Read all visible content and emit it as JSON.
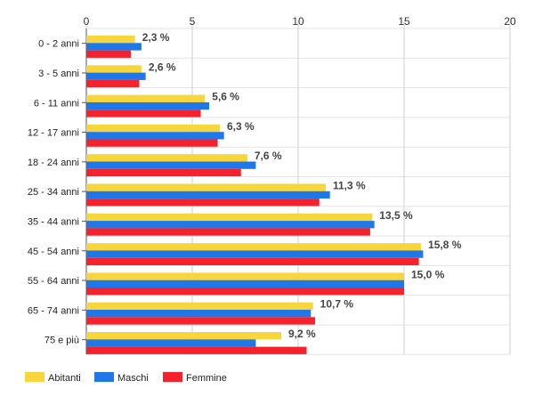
{
  "chart_data": {
    "type": "bar",
    "orientation": "horizontal",
    "categories": [
      "0 - 2 anni",
      "3 - 5 anni",
      "6 - 11 anni",
      "12 - 17 anni",
      "18 - 24 anni",
      "25 - 34 anni",
      "35 - 44 anni",
      "45 - 54 anni",
      "55 - 64 anni",
      "65 - 74 anni",
      "75 e più"
    ],
    "series": [
      {
        "name": "Abitanti",
        "color": "#f7d63c",
        "values": [
          2.3,
          2.6,
          5.6,
          6.3,
          7.6,
          11.3,
          13.5,
          15.8,
          15.0,
          10.7,
          9.2
        ]
      },
      {
        "name": "Maschi",
        "color": "#1f77e8",
        "values": [
          2.6,
          2.8,
          5.8,
          6.5,
          8.0,
          11.5,
          13.6,
          15.9,
          15.0,
          10.6,
          8.0
        ]
      },
      {
        "name": "Femmine",
        "color": "#f5222d",
        "values": [
          2.1,
          2.5,
          5.4,
          6.2,
          7.3,
          11.0,
          13.4,
          15.7,
          15.0,
          10.8,
          10.4
        ]
      }
    ],
    "data_labels": [
      "2,3 %",
      "2,6 %",
      "5,6 %",
      "6,3 %",
      "7,6 %",
      "11,3 %",
      "13,5 %",
      "15,8 %",
      "15,0 %",
      "10,7 %",
      "9,2 %"
    ],
    "x_ticks": [
      "0",
      "5",
      "10",
      "15",
      "20"
    ],
    "xlim": [
      0,
      20
    ],
    "grid": true,
    "legend_position": "bottom-left",
    "title": "",
    "xlabel": "",
    "ylabel": ""
  }
}
